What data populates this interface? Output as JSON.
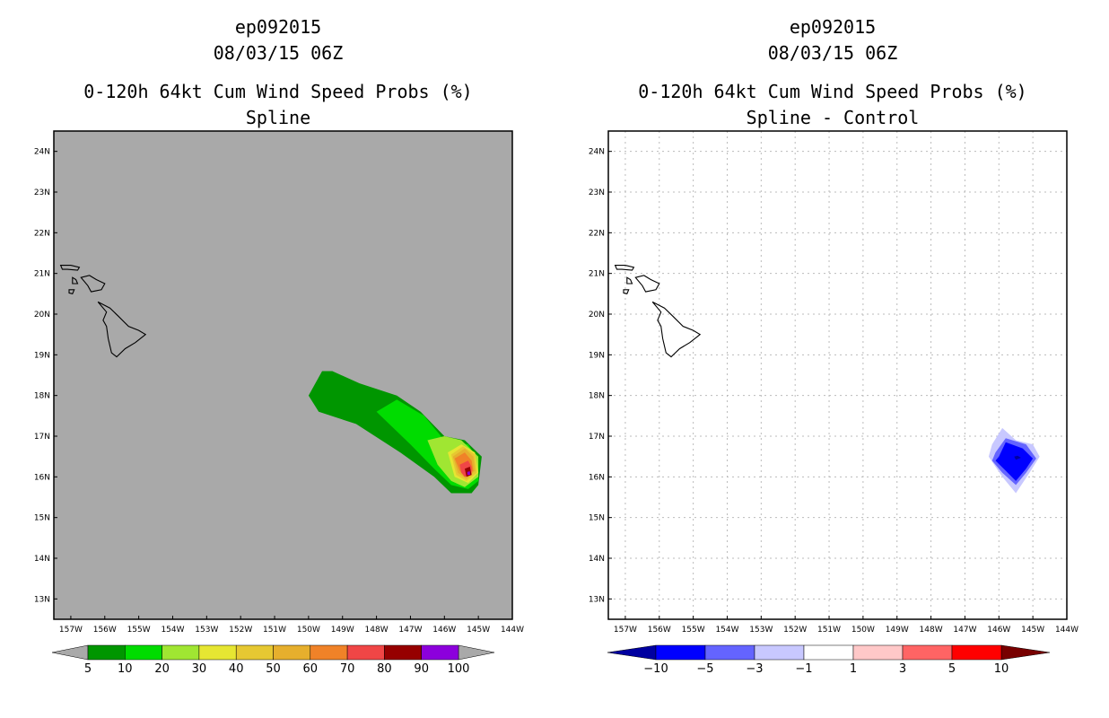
{
  "chart_data": [
    {
      "type": "heatmap",
      "storm_id": "ep092015",
      "datetime": "08/03/15 06Z",
      "title": "0-120h 64kt Cum Wind Speed Probs (%)",
      "subtitle": "Spline",
      "background": "#a9a9a9",
      "grid": false,
      "xlim": [
        -157.5,
        -144
      ],
      "ylim": [
        12.5,
        24.5
      ],
      "x_ticks": [
        -157,
        -156,
        -155,
        -154,
        -153,
        -152,
        -151,
        -150,
        -149,
        -148,
        -147,
        -146,
        -145,
        -144
      ],
      "x_tick_labels": [
        "157W",
        "156W",
        "155W",
        "154W",
        "153W",
        "152W",
        "151W",
        "150W",
        "149W",
        "148W",
        "147W",
        "146W",
        "145W",
        "144W"
      ],
      "y_ticks": [
        13,
        14,
        15,
        16,
        17,
        18,
        19,
        20,
        21,
        22,
        23,
        24
      ],
      "y_tick_labels": [
        "13N",
        "14N",
        "15N",
        "16N",
        "17N",
        "18N",
        "19N",
        "20N",
        "21N",
        "22N",
        "23N",
        "24N"
      ],
      "colorbar": {
        "labels": [
          "5",
          "10",
          "20",
          "30",
          "40",
          "50",
          "60",
          "70",
          "80",
          "90",
          "100"
        ],
        "colors": [
          "#009600",
          "#00dc00",
          "#a0e632",
          "#e6e632",
          "#e6c832",
          "#e6af2d",
          "#f08228",
          "#f04646",
          "#960000",
          "#8c00dc"
        ],
        "end_color": "#a9a9a9"
      },
      "contours": [
        {
          "level": 5,
          "color": "#009600",
          "points": [
            [
              -150.0,
              18.0
            ],
            [
              -149.6,
              18.6
            ],
            [
              -149.3,
              18.6
            ],
            [
              -148.5,
              18.3
            ],
            [
              -147.4,
              18.0
            ],
            [
              -146.7,
              17.6
            ],
            [
              -146.0,
              17.0
            ],
            [
              -145.4,
              16.9
            ],
            [
              -144.9,
              16.5
            ],
            [
              -145.0,
              15.8
            ],
            [
              -145.2,
              15.6
            ],
            [
              -145.8,
              15.6
            ],
            [
              -146.3,
              16.0
            ],
            [
              -147.3,
              16.6
            ],
            [
              -148.6,
              17.3
            ],
            [
              -149.7,
              17.6
            ]
          ]
        },
        {
          "level": 10,
          "color": "#00dc00",
          "points": [
            [
              -148.0,
              17.6
            ],
            [
              -147.4,
              17.9
            ],
            [
              -146.6,
              17.5
            ],
            [
              -146.0,
              16.9
            ],
            [
              -145.3,
              16.8
            ],
            [
              -145.0,
              16.4
            ],
            [
              -145.0,
              15.9
            ],
            [
              -145.3,
              15.7
            ],
            [
              -145.8,
              15.8
            ],
            [
              -146.3,
              16.2
            ],
            [
              -147.0,
              16.8
            ]
          ]
        },
        {
          "level": 20,
          "color": "#a0e632",
          "points": [
            [
              -146.5,
              16.9
            ],
            [
              -146.0,
              17.0
            ],
            [
              -145.5,
              16.9
            ],
            [
              -145.0,
              16.5
            ],
            [
              -145.0,
              16.0
            ],
            [
              -145.4,
              15.75
            ],
            [
              -145.8,
              15.9
            ],
            [
              -146.2,
              16.3
            ]
          ]
        },
        {
          "level": 30,
          "color": "#e6e632",
          "points": [
            [
              -145.9,
              16.6
            ],
            [
              -145.5,
              16.8
            ],
            [
              -145.1,
              16.6
            ],
            [
              -145.0,
              16.1
            ],
            [
              -145.3,
              15.85
            ],
            [
              -145.7,
              16.0
            ]
          ]
        },
        {
          "level": 40,
          "color": "#e6c832",
          "points": [
            [
              -145.8,
              16.55
            ],
            [
              -145.45,
              16.75
            ],
            [
              -145.1,
              16.55
            ],
            [
              -145.05,
              16.1
            ],
            [
              -145.35,
              15.9
            ],
            [
              -145.65,
              16.05
            ]
          ]
        },
        {
          "level": 50,
          "color": "#e6af2d",
          "points": [
            [
              -145.75,
              16.5
            ],
            [
              -145.4,
              16.7
            ],
            [
              -145.15,
              16.5
            ],
            [
              -145.1,
              16.15
            ],
            [
              -145.35,
              15.95
            ],
            [
              -145.6,
              16.1
            ]
          ]
        },
        {
          "level": 60,
          "color": "#f08228",
          "points": [
            [
              -145.7,
              16.45
            ],
            [
              -145.4,
              16.6
            ],
            [
              -145.2,
              16.4
            ],
            [
              -145.15,
              16.15
            ],
            [
              -145.4,
              16.0
            ],
            [
              -145.55,
              16.15
            ]
          ]
        },
        {
          "level": 70,
          "color": "#f04646",
          "points": [
            [
              -145.55,
              16.3
            ],
            [
              -145.3,
              16.4
            ],
            [
              -145.2,
              16.25
            ],
            [
              -145.2,
              16.05
            ],
            [
              -145.4,
              16.0
            ],
            [
              -145.5,
              16.1
            ]
          ]
        },
        {
          "level": 80,
          "color": "#960000",
          "points": [
            [
              -145.4,
              16.2
            ],
            [
              -145.25,
              16.25
            ],
            [
              -145.2,
              16.05
            ],
            [
              -145.35,
              16.0
            ]
          ]
        },
        {
          "level": 90,
          "color": "#8c00dc",
          "points": [
            [
              -145.33,
              16.12
            ],
            [
              -145.25,
              16.14
            ],
            [
              -145.24,
              16.05
            ],
            [
              -145.32,
              16.05
            ]
          ]
        }
      ]
    },
    {
      "type": "heatmap",
      "storm_id": "ep092015",
      "datetime": "08/03/15 06Z",
      "title": "0-120h 64kt Cum Wind Speed Probs (%)",
      "subtitle": "Spline - Control",
      "background": "#ffffff",
      "grid": true,
      "xlim": [
        -157.5,
        -144
      ],
      "ylim": [
        12.5,
        24.5
      ],
      "x_ticks": [
        -157,
        -156,
        -155,
        -154,
        -153,
        -152,
        -151,
        -150,
        -149,
        -148,
        -147,
        -146,
        -145,
        -144
      ],
      "x_tick_labels": [
        "157W",
        "156W",
        "155W",
        "154W",
        "153W",
        "152W",
        "151W",
        "150W",
        "149W",
        "148W",
        "147W",
        "146W",
        "145W",
        "144W"
      ],
      "y_ticks": [
        13,
        14,
        15,
        16,
        17,
        18,
        19,
        20,
        21,
        22,
        23,
        24
      ],
      "y_tick_labels": [
        "13N",
        "14N",
        "15N",
        "16N",
        "17N",
        "18N",
        "19N",
        "20N",
        "21N",
        "22N",
        "23N",
        "24N"
      ],
      "colorbar": {
        "labels": [
          "−10",
          "−5",
          "−3",
          "−1",
          "1",
          "3",
          "5",
          "10"
        ],
        "colors": [
          "#0000a0",
          "#0000ff",
          "#6464ff",
          "#c8c8ff",
          "#ffffff",
          "#ffc8c8",
          "#ff6464",
          "#ff0000",
          "#780000"
        ]
      },
      "contours": [
        {
          "level": -1,
          "color": "#c8c8ff",
          "points": [
            [
              -146.2,
              16.8
            ],
            [
              -145.9,
              17.2
            ],
            [
              -145.5,
              16.9
            ],
            [
              -145.0,
              16.8
            ],
            [
              -144.8,
              16.5
            ],
            [
              -145.1,
              16.1
            ],
            [
              -145.5,
              15.6
            ],
            [
              -145.9,
              16.0
            ],
            [
              -146.3,
              16.5
            ]
          ]
        },
        {
          "level": -3,
          "color": "#6464ff",
          "points": [
            [
              -146.1,
              16.6
            ],
            [
              -145.8,
              16.95
            ],
            [
              -145.2,
              16.8
            ],
            [
              -144.9,
              16.45
            ],
            [
              -145.2,
              16.1
            ],
            [
              -145.5,
              15.8
            ],
            [
              -145.9,
              16.1
            ],
            [
              -146.2,
              16.4
            ]
          ]
        },
        {
          "level": -5,
          "color": "#0000ff",
          "points": [
            [
              -146.0,
              16.5
            ],
            [
              -145.8,
              16.85
            ],
            [
              -145.3,
              16.7
            ],
            [
              -145.0,
              16.45
            ],
            [
              -145.2,
              16.2
            ],
            [
              -145.5,
              15.9
            ],
            [
              -145.8,
              16.15
            ],
            [
              -146.1,
              16.4
            ]
          ]
        },
        {
          "level": -10,
          "color": "#0000a0",
          "points": [
            [
              -145.55,
              16.5
            ],
            [
              -145.45,
              16.52
            ],
            [
              -145.35,
              16.47
            ],
            [
              -145.5,
              16.42
            ]
          ]
        }
      ]
    }
  ],
  "islands": [
    [
      [
        -156.2,
        20.3
      ],
      [
        -155.85,
        20.15
      ],
      [
        -155.6,
        19.95
      ],
      [
        -155.3,
        19.7
      ],
      [
        -155.0,
        19.6
      ],
      [
        -154.8,
        19.5
      ],
      [
        -155.1,
        19.3
      ],
      [
        -155.4,
        19.15
      ],
      [
        -155.65,
        18.95
      ],
      [
        -155.8,
        19.05
      ],
      [
        -155.9,
        19.4
      ],
      [
        -155.95,
        19.7
      ],
      [
        -156.05,
        19.85
      ],
      [
        -155.95,
        20.05
      ]
    ],
    [
      [
        -156.7,
        20.9
      ],
      [
        -156.45,
        20.95
      ],
      [
        -156.25,
        20.85
      ],
      [
        -156.0,
        20.75
      ],
      [
        -156.1,
        20.6
      ],
      [
        -156.4,
        20.55
      ],
      [
        -156.5,
        20.7
      ]
    ],
    [
      [
        -157.3,
        21.2
      ],
      [
        -157.0,
        21.2
      ],
      [
        -156.75,
        21.15
      ],
      [
        -156.8,
        21.08
      ],
      [
        -157.1,
        21.1
      ],
      [
        -157.25,
        21.1
      ]
    ],
    [
      [
        -156.95,
        20.9
      ],
      [
        -156.85,
        20.85
      ],
      [
        -156.8,
        20.75
      ],
      [
        -156.95,
        20.75
      ]
    ],
    [
      [
        -157.05,
        20.6
      ],
      [
        -156.9,
        20.6
      ],
      [
        -156.95,
        20.5
      ],
      [
        -157.05,
        20.52
      ]
    ]
  ]
}
